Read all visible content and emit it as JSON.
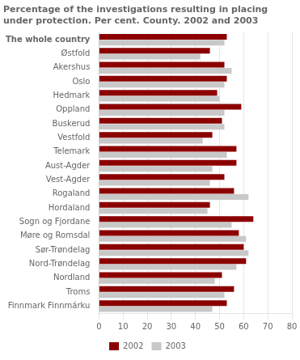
{
  "chart_data": {
    "type": "bar",
    "orientation": "horizontal",
    "title": "Percentage of the investigations resulting in placing\nunder protection. Per cent. County. 2002 and 2003",
    "categories": [
      "The whole country",
      "Østfold",
      "Akershus",
      "Oslo",
      "Hedmark",
      "Oppland",
      "Buskerud",
      "Vestfold",
      "Telemark",
      "Aust-Agder",
      "Vest-Agder",
      "Rogaland",
      "Hordaland",
      "Sogn og Fjordane",
      "Møre og Romsdal",
      "Sør-Trøndelag",
      "Nord-Trøndelag",
      "Nordland",
      "Troms",
      "Finnmark Finnmárku"
    ],
    "series": [
      {
        "name": "2002",
        "color": "#8B0000",
        "values": [
          53,
          46,
          52,
          53,
          49,
          59,
          51,
          47,
          57,
          57,
          52,
          56,
          46,
          64,
          58,
          60,
          61,
          51,
          56,
          53
        ]
      },
      {
        "name": "2003",
        "color": "#C8C8C8",
        "values": [
          52,
          42,
          55,
          52,
          50,
          52,
          52,
          43,
          53,
          47,
          46,
          62,
          45,
          55,
          61,
          62,
          57,
          48,
          52,
          47
        ]
      }
    ],
    "xlim": [
      0,
      80
    ],
    "xticks": [
      0,
      10,
      20,
      30,
      40,
      50,
      60,
      70,
      80
    ],
    "grid": true,
    "legend": "bottom"
  }
}
